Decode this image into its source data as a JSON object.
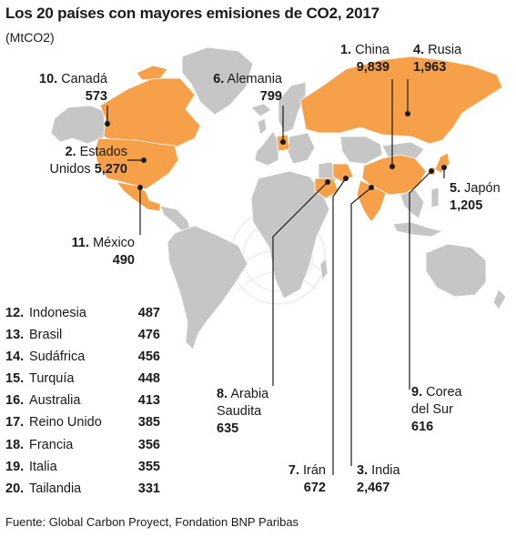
{
  "title": "Los 20 países con mayores emisiones de CO2, 2017",
  "subtitle": "(MtCO2)",
  "colors": {
    "highlight": "#f7a04a",
    "land": "#c6c6c6",
    "border": "#ffffff",
    "leader": "#1a1a1a"
  },
  "map_countries": [
    {
      "rank": "1.",
      "name": "China",
      "value": "9,839"
    },
    {
      "rank": "4.",
      "name": "Rusia",
      "value": "1,963"
    },
    {
      "rank": "10.",
      "name": "Canadá",
      "value": "573"
    },
    {
      "rank": "6.",
      "name": "Alemania",
      "value": "799"
    },
    {
      "rank": "2.",
      "name_line1": "Estados",
      "name_line2": "Unidos",
      "value": "5,270"
    },
    {
      "rank": "5.",
      "name": "Japón",
      "value": "1,205"
    },
    {
      "rank": "11.",
      "name": "México",
      "value": "490"
    },
    {
      "rank": "8.",
      "name_line1": "Arabia",
      "name_line2": "Saudita",
      "value": "635"
    },
    {
      "rank": "9.",
      "name_line1": "Corea",
      "name_line2": "del Sur",
      "value": "616"
    },
    {
      "rank": "7.",
      "name": "Irán",
      "value": "672"
    },
    {
      "rank": "3.",
      "name": "India",
      "value": "2,467"
    }
  ],
  "ranking_list": [
    {
      "rank": "12.",
      "name": "Indonesia",
      "value": "487"
    },
    {
      "rank": "13.",
      "name": "Brasil",
      "value": "476"
    },
    {
      "rank": "14.",
      "name": "Sudáfrica",
      "value": "456"
    },
    {
      "rank": "15.",
      "name": "Turquía",
      "value": "448"
    },
    {
      "rank": "16.",
      "name": "Australia",
      "value": "413"
    },
    {
      "rank": "17.",
      "name": "Reino Unido",
      "value": "385"
    },
    {
      "rank": "18.",
      "name": "Francia",
      "value": "356"
    },
    {
      "rank": "19.",
      "name": "Italia",
      "value": "355"
    },
    {
      "rank": "20.",
      "name": "Tailandia",
      "value": "331"
    }
  ],
  "source": "Fuente: Global Carbon Proyect, Fondation BNP Paribas"
}
